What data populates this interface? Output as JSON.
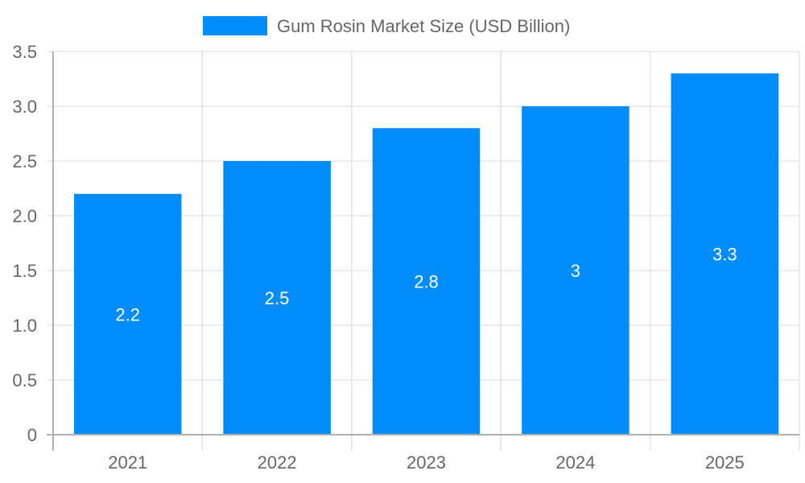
{
  "chart_data": {
    "type": "bar",
    "title": "",
    "categories": [
      "2021",
      "2022",
      "2023",
      "2024",
      "2025"
    ],
    "series": [
      {
        "name": "Gum Rosin Market Size (USD Billion)",
        "values": [
          2.2,
          2.5,
          2.8,
          3,
          3.3
        ],
        "color": "#028cfc"
      }
    ],
    "value_labels": [
      "2.2",
      "2.5",
      "2.8",
      "3",
      "3.3"
    ],
    "xlabel": "",
    "ylabel": "",
    "ylim": [
      0,
      3.5
    ],
    "yticks": [
      "0",
      "0.5",
      "1.0",
      "1.5",
      "2.0",
      "2.5",
      "3.0",
      "3.5"
    ],
    "grid": true,
    "legend_position": "top"
  },
  "legend": {
    "label": "Gum Rosin Market Size (USD Billion)",
    "color": "#028cfc"
  }
}
